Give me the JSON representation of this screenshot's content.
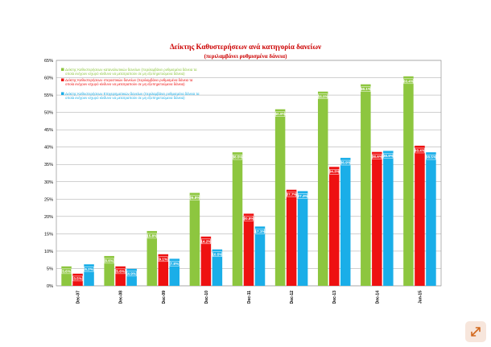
{
  "chart_data": {
    "type": "bar",
    "title": "Δείκτης Καθυστερήσεων ανά κατηγορία δανείων",
    "subtitle": "(περιλαμβάνει ρυθμισμένα δάνεια)",
    "categories": [
      "Dec-07",
      "Dec-08",
      "Dec-09",
      "Dec-10",
      "Dec-11",
      "Dec-12",
      "Dec-13",
      "Dec-14",
      "Jun-15"
    ],
    "ylim": [
      0,
      65
    ],
    "yticks": [
      "0%",
      "5%",
      "10%",
      "15%",
      "20%",
      "25%",
      "30%",
      "35%",
      "40%",
      "45%",
      "50%",
      "55%",
      "60%",
      "65%"
    ],
    "grid": true,
    "legend_placement": "top-left",
    "series": [
      {
        "name": "Δείκτης Καθυστερήσεων καταναλωτικών δανείων (περιλαμβάνει ρυθμισμένα δάνεια  τα οποία ενέχουν ισχυρό κίνδυνο να μετατραπούν σε μη εξυπηρετούμενα δάνεια)",
        "color": "#8dc63f",
        "values": [
          5.6,
          8.6,
          15.8,
          26.8,
          38.5,
          50.9,
          56.0,
          58.1,
          60.4
        ],
        "labels": [
          "5.6%",
          "8.6%",
          "15.8%",
          "26.8%",
          "38.5%",
          "50.9%",
          "56.0%",
          "58.1%",
          "60.4%"
        ]
      },
      {
        "name": "Δείκτης Καθυστερήσεων στεγαστικών δανείων (περιλαμβάνει ρυθμισμένα δάνεια  τα οποία ενέχουν ισχυρό κίνδυνο να μετατραπούν σε μη εξυπηρετούμενα δάνεια)",
        "color": "#ee1111",
        "values": [
          3.5,
          5.6,
          9.1,
          14.2,
          20.8,
          27.7,
          34.3,
          38.6,
          40.4
        ],
        "labels": [
          "3.5%",
          "5.6%",
          "9.1%",
          "14.2%",
          "20.8%",
          "27.7%",
          "34.3%",
          "38.6%",
          "40.4%"
        ]
      },
      {
        "name": "Δείκτης Καθυστερήσεων Επιχειρηματικών δανείων (περιλαμβάνει ρυθμισμένα δάνεια  τα οποία ενέχουν ισχυρό κίνδυνο να μετατραπούν σε μη εξυπηρετούμενα δάνεια)",
        "color": "#1aaee8",
        "values": [
          6.2,
          4.9,
          7.8,
          10.5,
          17.1,
          27.3,
          36.9,
          38.9,
          38.5
        ],
        "labels": [
          "6.2%",
          "4.9%",
          "7.8%",
          "10.5%",
          "17.1%",
          "27.3%",
          "36.9%",
          "38.9%",
          "38.5%"
        ]
      }
    ]
  },
  "ui": {
    "corner_button_icon": "expand-arrows-icon"
  }
}
